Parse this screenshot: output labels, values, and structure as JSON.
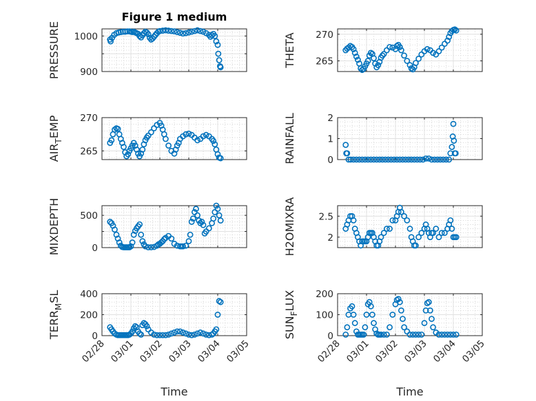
{
  "figure": {
    "title": "Figure 1 medium",
    "xlabel": "Time",
    "marker_color": "#0072BD",
    "x_ticks": [
      "02/28",
      "03/01",
      "03/02",
      "03/03",
      "03/04",
      "03/05"
    ]
  },
  "chart_data": [
    {
      "type": "scatter",
      "name": "PRESSURE",
      "ylabel": "PRESSURE",
      "ylim": [
        900,
        1020
      ],
      "yticks": [
        900,
        950,
        1000
      ],
      "ytick_labels": [
        "900",
        "",
        "1000"
      ],
      "xlim": [
        0,
        5
      ],
      "xticks": [
        "02/28",
        "03/01",
        "03/02",
        "03/03",
        "03/04",
        "03/05"
      ],
      "x": [
        0.28,
        0.3,
        0.35,
        0.42,
        0.5,
        0.58,
        0.65,
        0.72,
        0.8,
        0.88,
        0.95,
        1.0,
        1.05,
        1.1,
        1.15,
        1.2,
        1.25,
        1.3,
        1.35,
        1.4,
        1.45,
        1.5,
        1.55,
        1.6,
        1.65,
        1.7,
        1.75,
        1.8,
        1.85,
        1.9,
        1.95,
        2.0,
        2.1,
        2.2,
        2.3,
        2.4,
        2.5,
        2.6,
        2.7,
        2.8,
        2.9,
        3.0,
        3.1,
        3.2,
        3.3,
        3.4,
        3.5,
        3.6,
        3.7,
        3.75,
        3.8,
        3.85,
        3.9,
        3.95,
        4.0,
        4.02,
        4.05,
        4.08,
        4.1
      ],
      "y": [
        990,
        985,
        995,
        1003,
        1008,
        1010,
        1011,
        1012,
        1012,
        1013,
        1013,
        1012,
        1011,
        1012,
        1010,
        1008,
        1006,
        1000,
        996,
        1002,
        1008,
        1012,
        1010,
        1005,
        995,
        990,
        993,
        998,
        1003,
        1008,
        1012,
        1014,
        1015,
        1016,
        1015,
        1014,
        1013,
        1011,
        1009,
        1007,
        1008,
        1010,
        1012,
        1014,
        1016,
        1014,
        1012,
        1008,
        1003,
        998,
        1002,
        1006,
        1000,
        985,
        975,
        950,
        932,
        915,
        912
      ]
    },
    {
      "type": "scatter",
      "name": "THETA",
      "ylabel": "THETA",
      "ylim": [
        263,
        271
      ],
      "yticks": [
        265,
        270
      ],
      "ytick_labels": [
        "265",
        "270"
      ],
      "xlim": [
        0,
        5
      ],
      "xticks": [
        "02/28",
        "03/01",
        "03/02",
        "03/03",
        "03/04",
        "03/05"
      ],
      "x": [
        0.28,
        0.33,
        0.38,
        0.44,
        0.5,
        0.55,
        0.6,
        0.65,
        0.7,
        0.75,
        0.8,
        0.85,
        0.9,
        0.95,
        1.0,
        1.05,
        1.1,
        1.15,
        1.2,
        1.25,
        1.3,
        1.35,
        1.4,
        1.45,
        1.5,
        1.55,
        1.6,
        1.7,
        1.8,
        1.9,
        2.0,
        2.05,
        2.1,
        2.15,
        2.2,
        2.3,
        2.4,
        2.5,
        2.55,
        2.6,
        2.65,
        2.7,
        2.8,
        2.9,
        3.0,
        3.1,
        3.2,
        3.3,
        3.4,
        3.5,
        3.6,
        3.7,
        3.8,
        3.85,
        3.9,
        3.95,
        4.0,
        4.05,
        4.1
      ],
      "y": [
        267,
        267.3,
        267.5,
        267.8,
        267.6,
        267.2,
        266.5,
        265.8,
        265.2,
        264.5,
        263.6,
        263.3,
        263.5,
        264,
        264.5,
        265,
        266,
        266.5,
        266.3,
        265.5,
        264.5,
        263.8,
        264.2,
        264.8,
        265.6,
        266,
        266.3,
        267,
        267.6,
        267.5,
        267.2,
        267.8,
        268,
        267.6,
        267,
        266,
        265,
        264.2,
        263.6,
        263.4,
        263.8,
        264.6,
        265.4,
        266.2,
        266.8,
        267.2,
        267,
        266.5,
        266.2,
        266.8,
        267.5,
        268.2,
        268.8,
        269.5,
        270.2,
        270.6,
        270.8,
        270.9,
        270.7
      ]
    },
    {
      "type": "scatter",
      "name": "AIR_TEMP",
      "ylabel": "AIR_T_EMP",
      "ylim": [
        263.7,
        270
      ],
      "yticks": [
        265,
        270
      ],
      "ytick_labels": [
        "265",
        "270"
      ],
      "xlim": [
        0,
        5
      ],
      "xticks": [
        "02/28",
        "03/01",
        "03/02",
        "03/03",
        "03/04",
        "03/05"
      ],
      "x": [
        0.28,
        0.33,
        0.38,
        0.44,
        0.5,
        0.55,
        0.6,
        0.65,
        0.7,
        0.75,
        0.8,
        0.85,
        0.9,
        0.95,
        1.0,
        1.05,
        1.1,
        1.15,
        1.2,
        1.25,
        1.3,
        1.35,
        1.4,
        1.45,
        1.5,
        1.55,
        1.6,
        1.7,
        1.8,
        1.9,
        2.0,
        2.05,
        2.1,
        2.15,
        2.2,
        2.3,
        2.4,
        2.5,
        2.55,
        2.6,
        2.65,
        2.7,
        2.8,
        2.9,
        3.0,
        3.1,
        3.2,
        3.3,
        3.4,
        3.5,
        3.6,
        3.7,
        3.8,
        3.85,
        3.9,
        3.95,
        4.0,
        4.05,
        4.1
      ],
      "y": [
        266.2,
        266.6,
        267.5,
        268.2,
        268.4,
        268.3,
        267.5,
        266.8,
        266.2,
        265.6,
        264.8,
        264.2,
        264.5,
        265,
        265.4,
        265.8,
        266.2,
        265.8,
        265.2,
        264.6,
        264.2,
        264.6,
        265.2,
        266,
        266.6,
        267,
        267.3,
        267.8,
        268.4,
        268.9,
        269.2,
        268.8,
        268.2,
        267.5,
        266.8,
        265.8,
        265,
        264.6,
        265.2,
        265.8,
        266.2,
        266.8,
        267.2,
        267.5,
        267.6,
        267.4,
        267,
        266.6,
        266.8,
        267.2,
        267.4,
        267.2,
        266.8,
        266.5,
        266,
        265.2,
        264.5,
        264,
        263.9
      ]
    },
    {
      "type": "scatter",
      "name": "RAINFALL",
      "ylabel": "RAINFALL",
      "ylim": [
        0,
        2
      ],
      "yticks": [
        0,
        1,
        2
      ],
      "ytick_labels": [
        "0",
        "1",
        "2"
      ],
      "xlim": [
        0,
        5
      ],
      "xticks": [
        "02/28",
        "03/01",
        "03/02",
        "03/03",
        "03/04",
        "03/05"
      ],
      "x": [
        0.28,
        0.3,
        0.33,
        0.38,
        0.45,
        0.55,
        0.65,
        0.75,
        0.85,
        0.95,
        1.05,
        1.15,
        1.25,
        1.35,
        1.45,
        1.55,
        1.65,
        1.75,
        1.85,
        1.95,
        2.05,
        2.15,
        2.25,
        2.35,
        2.45,
        2.55,
        2.65,
        2.75,
        2.85,
        2.95,
        3.05,
        3.15,
        3.25,
        3.35,
        3.45,
        3.55,
        3.65,
        3.75,
        3.85,
        3.9,
        3.95,
        3.98,
        4.0,
        4.02,
        4.05,
        4.08
      ],
      "y": [
        0.7,
        0.3,
        0.3,
        0,
        0,
        0,
        0,
        0,
        0,
        0,
        0,
        0,
        0,
        0,
        0,
        0,
        0,
        0,
        0,
        0,
        0,
        0,
        0,
        0,
        0,
        0,
        0,
        0,
        0,
        0,
        0.05,
        0.05,
        0,
        0,
        0,
        0,
        0,
        0,
        0,
        0.3,
        0.6,
        1.1,
        1.7,
        0.9,
        0.3,
        0.3
      ]
    },
    {
      "type": "scatter",
      "name": "MIXDEPTH",
      "ylabel": "MIXDEPTH",
      "ylim": [
        0,
        650
      ],
      "yticks": [
        0,
        250,
        500
      ],
      "ytick_labels": [
        "0",
        "",
        "500"
      ],
      "xlim": [
        0,
        5
      ],
      "xticks": [
        "02/28",
        "03/01",
        "03/02",
        "03/03",
        "03/04",
        "03/05"
      ],
      "x": [
        0.28,
        0.33,
        0.38,
        0.44,
        0.5,
        0.55,
        0.6,
        0.65,
        0.7,
        0.75,
        0.8,
        0.85,
        0.9,
        0.95,
        1.0,
        1.05,
        1.1,
        1.15,
        1.2,
        1.25,
        1.3,
        1.35,
        1.4,
        1.45,
        1.5,
        1.6,
        1.7,
        1.8,
        1.9,
        1.95,
        2.0,
        2.05,
        2.1,
        2.15,
        2.2,
        2.3,
        2.4,
        2.5,
        2.6,
        2.7,
        2.75,
        2.8,
        2.9,
        3.0,
        3.05,
        3.1,
        3.15,
        3.2,
        3.25,
        3.3,
        3.35,
        3.4,
        3.45,
        3.5,
        3.55,
        3.6,
        3.7,
        3.8,
        3.85,
        3.9,
        3.95,
        4.0,
        4.05,
        4.1
      ],
      "y": [
        400,
        380,
        340,
        280,
        200,
        140,
        80,
        30,
        10,
        5,
        5,
        5,
        5,
        5,
        20,
        80,
        200,
        260,
        300,
        330,
        360,
        200,
        100,
        50,
        20,
        5,
        5,
        10,
        30,
        50,
        60,
        80,
        100,
        130,
        150,
        180,
        140,
        60,
        30,
        20,
        20,
        20,
        30,
        100,
        200,
        400,
        450,
        550,
        600,
        500,
        420,
        380,
        400,
        350,
        220,
        250,
        300,
        380,
        450,
        550,
        650,
        600,
        500,
        420
      ]
    },
    {
      "type": "scatter",
      "name": "H2OMIXRA",
      "ylabel": "H2OMIXRA",
      "ylim": [
        1.75,
        2.75
      ],
      "yticks": [
        2,
        2.5
      ],
      "ytick_labels": [
        "2",
        "2.5"
      ],
      "xlim": [
        0,
        5
      ],
      "xticks": [
        "02/28",
        "03/01",
        "03/02",
        "03/03",
        "03/04",
        "03/05"
      ],
      "x": [
        0.28,
        0.33,
        0.38,
        0.44,
        0.5,
        0.55,
        0.6,
        0.65,
        0.7,
        0.75,
        0.8,
        0.85,
        0.9,
        0.95,
        1.0,
        1.05,
        1.1,
        1.15,
        1.2,
        1.25,
        1.3,
        1.35,
        1.4,
        1.45,
        1.5,
        1.6,
        1.7,
        1.8,
        1.9,
        2.0,
        2.05,
        2.1,
        2.15,
        2.2,
        2.3,
        2.4,
        2.5,
        2.55,
        2.6,
        2.65,
        2.7,
        2.8,
        2.9,
        3.0,
        3.05,
        3.1,
        3.15,
        3.2,
        3.25,
        3.3,
        3.4,
        3.5,
        3.6,
        3.7,
        3.8,
        3.85,
        3.9,
        3.95,
        4.0,
        4.05,
        4.1
      ],
      "y": [
        2.2,
        2.3,
        2.4,
        2.5,
        2.5,
        2.4,
        2.2,
        2.1,
        2.0,
        1.9,
        1.8,
        1.9,
        1.9,
        1.9,
        1.9,
        2.0,
        2.1,
        2.1,
        2.1,
        2.0,
        1.9,
        1.8,
        1.8,
        1.9,
        2.0,
        2.1,
        2.2,
        2.2,
        2.4,
        2.4,
        2.5,
        2.6,
        2.7,
        2.6,
        2.5,
        2.4,
        2.2,
        2.0,
        1.9,
        1.8,
        1.8,
        2.0,
        2.1,
        2.2,
        2.3,
        2.2,
        2.1,
        2.0,
        2.1,
        2.1,
        2.2,
        2.0,
        2.1,
        2.1,
        2.2,
        2.3,
        2.4,
        2.2,
        2.0,
        2.0,
        2.0
      ]
    },
    {
      "type": "scatter",
      "name": "TERR_MSL",
      "ylabel": "TERR_M_SL",
      "ylim": [
        0,
        400
      ],
      "yticks": [
        0,
        200,
        400
      ],
      "ytick_labels": [
        "0",
        "200",
        "400"
      ],
      "xlim": [
        0,
        5
      ],
      "xticks": [
        "02/28",
        "03/01",
        "03/02",
        "03/03",
        "03/04",
        "03/05"
      ],
      "x": [
        0.28,
        0.33,
        0.38,
        0.44,
        0.5,
        0.55,
        0.6,
        0.65,
        0.7,
        0.75,
        0.8,
        0.85,
        0.9,
        0.95,
        1.0,
        1.05,
        1.1,
        1.15,
        1.2,
        1.25,
        1.3,
        1.35,
        1.4,
        1.45,
        1.5,
        1.55,
        1.6,
        1.7,
        1.8,
        1.9,
        2.0,
        2.1,
        2.2,
        2.3,
        2.4,
        2.5,
        2.6,
        2.7,
        2.8,
        2.9,
        3.0,
        3.1,
        3.2,
        3.3,
        3.4,
        3.5,
        3.6,
        3.7,
        3.8,
        3.85,
        3.9,
        3.95,
        4.0,
        4.05,
        4.1
      ],
      "y": [
        80,
        60,
        40,
        20,
        10,
        5,
        5,
        5,
        5,
        5,
        5,
        5,
        5,
        10,
        20,
        40,
        70,
        90,
        80,
        40,
        20,
        10,
        100,
        120,
        110,
        90,
        60,
        30,
        10,
        5,
        5,
        5,
        5,
        10,
        20,
        30,
        40,
        40,
        30,
        20,
        10,
        5,
        10,
        20,
        30,
        20,
        10,
        5,
        10,
        20,
        40,
        60,
        200,
        330,
        320
      ]
    },
    {
      "type": "scatter",
      "name": "SUN_FLUX",
      "ylabel": "SUN_F_LUX",
      "ylim": [
        0,
        200
      ],
      "yticks": [
        0,
        100,
        200
      ],
      "ytick_labels": [
        "0",
        "100",
        "200"
      ],
      "xlim": [
        0,
        5
      ],
      "xticks": [
        "02/28",
        "03/01",
        "03/02",
        "03/03",
        "03/04",
        "03/05"
      ],
      "x": [
        0.28,
        0.33,
        0.38,
        0.44,
        0.5,
        0.55,
        0.6,
        0.65,
        0.7,
        0.75,
        0.8,
        0.85,
        0.9,
        0.95,
        1.0,
        1.05,
        1.1,
        1.15,
        1.2,
        1.25,
        1.3,
        1.35,
        1.4,
        1.45,
        1.5,
        1.6,
        1.7,
        1.8,
        1.9,
        2.0,
        2.05,
        2.1,
        2.15,
        2.2,
        2.25,
        2.3,
        2.4,
        2.5,
        2.6,
        2.7,
        2.8,
        2.9,
        3.0,
        3.05,
        3.1,
        3.15,
        3.2,
        3.25,
        3.3,
        3.4,
        3.5,
        3.6,
        3.7,
        3.8,
        3.9,
        4.0,
        4.1
      ],
      "y": [
        5,
        40,
        100,
        130,
        140,
        100,
        60,
        20,
        5,
        5,
        5,
        5,
        5,
        40,
        100,
        150,
        160,
        140,
        100,
        60,
        30,
        10,
        5,
        5,
        5,
        5,
        5,
        40,
        100,
        150,
        170,
        175,
        160,
        120,
        80,
        40,
        20,
        5,
        5,
        5,
        5,
        5,
        60,
        120,
        155,
        160,
        120,
        80,
        40,
        15,
        5,
        5,
        5,
        5,
        5,
        5,
        5
      ]
    }
  ]
}
